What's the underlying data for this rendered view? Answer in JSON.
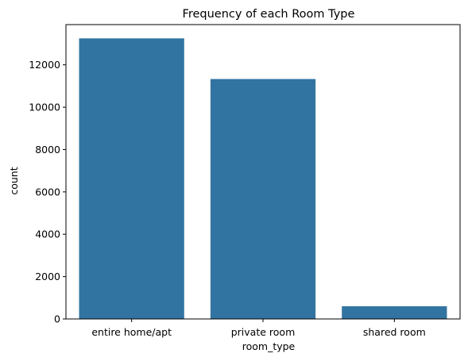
{
  "chart_data": {
    "type": "bar",
    "title": "Frequency of each Room Type",
    "xlabel": "room_type",
    "ylabel": "count",
    "categories": [
      "entire home/apt",
      "private room",
      "shared room"
    ],
    "values": [
      13250,
      11330,
      600
    ],
    "ylim": [
      0,
      13900
    ],
    "yticks": [
      0,
      2000,
      4000,
      6000,
      8000,
      10000,
      12000
    ],
    "grid": false,
    "legend": "none",
    "bar_color": "#3274a1"
  }
}
